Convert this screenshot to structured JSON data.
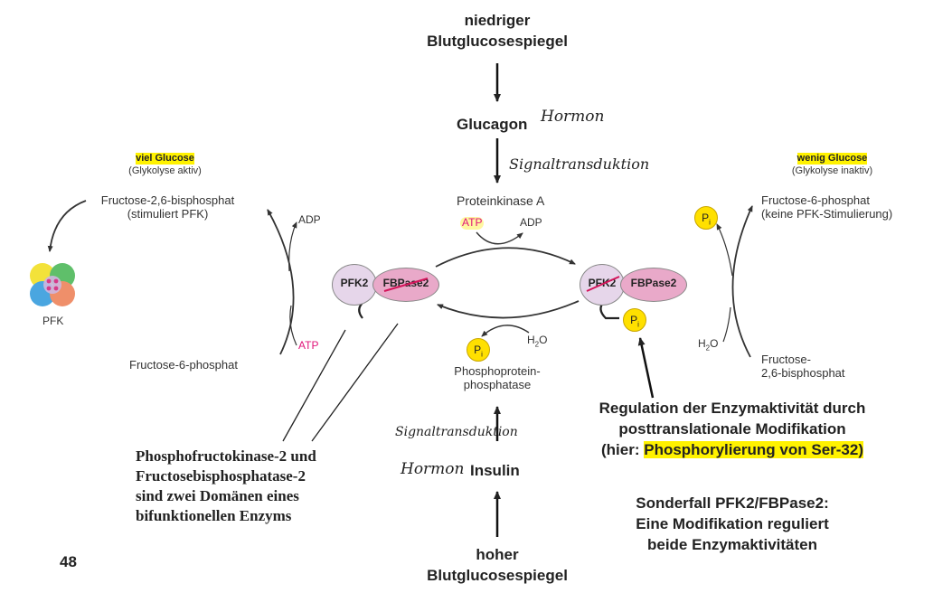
{
  "top": {
    "line1": "niedriger",
    "line2": "Blutglucosespiegel"
  },
  "glucagon": {
    "label": "Glucagon",
    "note": "Hormon"
  },
  "signal_top": "Signaltransduktion",
  "pka": {
    "label": "Proteinkinase A",
    "atp": "ATP",
    "adp": "ADP"
  },
  "left": {
    "header_title": "viel Glucose",
    "header_sub": "(Glykolyse aktiv)",
    "f26bp_line1": "Fructose-2,6-bisphosphat",
    "f26bp_line2": "(stimuliert PFK)",
    "adp": "ADP",
    "atp": "ATP",
    "f6p": "Fructose-6-phosphat",
    "pfk_label": "PFK"
  },
  "right": {
    "header_title": "wenig Glucose",
    "header_sub": "(Glykolyse inaktiv)",
    "f6p_line1": "Fructose-6-phosphat",
    "f6p_line2": "(keine PFK-Stimulierung)",
    "pi": "P",
    "pi_sub": "i",
    "h2o": "H",
    "h2o_sub": "2",
    "h2o_end": "O",
    "f26bp_line1": "Fructose-",
    "f26bp_line2": "2,6-bisphosphat"
  },
  "enzyme": {
    "pfk2": "PFK2",
    "fbpase2": "FBPase2",
    "pi": "P",
    "pi_sub": "i"
  },
  "phosphatase": {
    "pi": "P",
    "pi_sub": "i",
    "h2o": "H",
    "h2o_sub": "2",
    "h2o_end": "O",
    "line1": "Phosphoprotein-",
    "line2": "phosphatase"
  },
  "insulin": {
    "label": "Insulin",
    "note": "Hormon",
    "signal": "Signaltransduktion"
  },
  "bottom": {
    "line1": "hoher",
    "line2": "Blutglucosespiegel"
  },
  "domains_note": {
    "line1": "Phosphofructokinase-2 und",
    "line2": "Fructosebisphosphatase-2",
    "line3": "sind zwei Domänen eines",
    "line4": "bifunktionellen Enzyms"
  },
  "regulation_note": {
    "line1": "Regulation der Enzymaktivität durch",
    "line2": "posttranslationale Modifikation",
    "line3_pre": "(hier: ",
    "line3_hl": "Phosphorylierung von Ser-32)"
  },
  "special_note": {
    "line1": "Sonderfall PFK2/FBPase2:",
    "line2": "Eine Modifikation reguliert",
    "line3": "beide Enzymaktivitäten"
  },
  "page_number": "48",
  "colors": {
    "highlight": "#fff200",
    "atp_pink": "#e0147a",
    "enzyme_fill": "#e6d6ea",
    "fbpase_fill": "#e9a9c9",
    "pi_fill": "#ffe000"
  }
}
